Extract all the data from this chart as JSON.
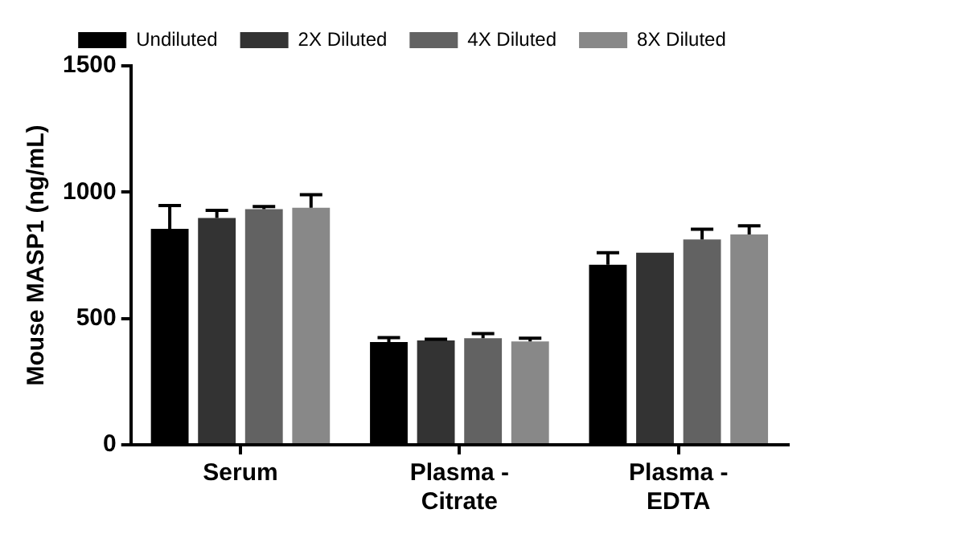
{
  "chart_data": {
    "type": "bar",
    "ylabel": "Mouse MASP1 (ng/mL)",
    "categories": [
      "Serum",
      "Plasma - Citrate",
      "Plasma - EDTA"
    ],
    "series": [
      {
        "name": "Undiluted",
        "color": "#000000",
        "values": [
          855,
          407,
          713
        ],
        "errors": [
          92,
          17,
          47
        ]
      },
      {
        "name": "2X Diluted",
        "color": "#333333",
        "values": [
          898,
          413,
          760
        ],
        "errors": [
          30,
          5,
          null
        ]
      },
      {
        "name": "4X Diluted",
        "color": "#626262",
        "values": [
          933,
          422,
          813
        ],
        "errors": [
          10,
          18,
          40
        ]
      },
      {
        "name": "8X Diluted",
        "color": "#888888",
        "values": [
          938,
          409,
          833
        ],
        "errors": [
          52,
          13,
          34
        ]
      }
    ],
    "ylim": [
      0,
      1500
    ],
    "yticks": [
      0,
      500,
      1000,
      1500
    ],
    "grid": false,
    "legend": "top"
  }
}
